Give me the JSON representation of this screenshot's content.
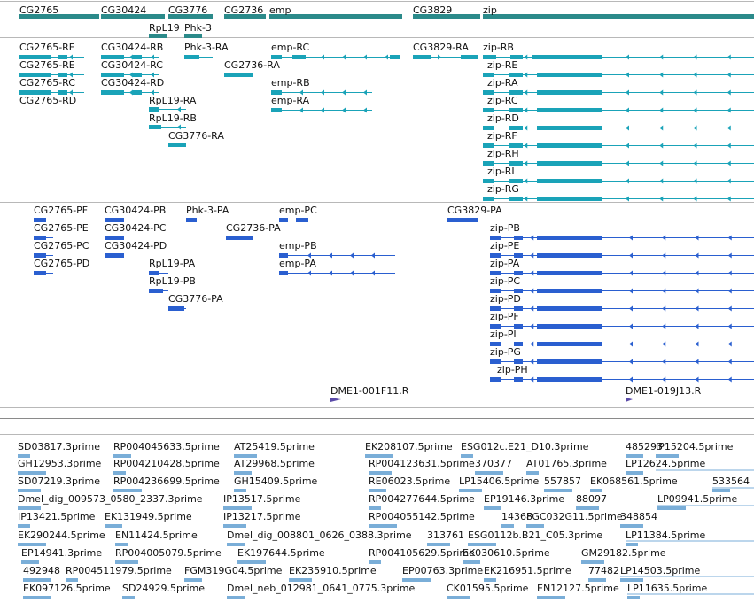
{
  "colors": {
    "gene": "#2b8a8a",
    "transcript": "#1aa3b8",
    "protein": "#2a5fd0",
    "clone": "#5a4aa8",
    "est": "#7aaed8",
    "divider": "#b8b8b8"
  },
  "tracks": {
    "genes": [
      "CG2765",
      "CG30424",
      "CG3776",
      "RpL19",
      "Phk-3",
      "CG2736",
      "emp",
      "CG3829",
      "zip"
    ],
    "transcripts": [
      "CG2765-RF",
      "CG2765-RE",
      "CG2765-RC",
      "CG2765-RD",
      "CG30424-RB",
      "CG30424-RC",
      "CG30424-RD",
      "RpL19-RA",
      "RpL19-RB",
      "CG3776-RA",
      "Phk-3-RA",
      "CG2736-RA",
      "emp-RC",
      "emp-RB",
      "emp-RA",
      "CG3829-RA",
      "zip-RB",
      "zip-RE",
      "zip-RA",
      "zip-RC",
      "zip-RD",
      "zip-RF",
      "zip-RH",
      "zip-RI",
      "zip-RG"
    ],
    "proteins": [
      "CG2765-PF",
      "CG2765-PE",
      "CG2765-PC",
      "CG2765-PD",
      "CG30424-PB",
      "CG30424-PC",
      "CG30424-PD",
      "RpL19-PA",
      "RpL19-PB",
      "CG3776-PA",
      "Phk-3-PA",
      "CG2736-PA",
      "emp-PC",
      "emp-PB",
      "emp-PA",
      "CG3829-PA",
      "zip-PB",
      "zip-PE",
      "zip-PA",
      "zip-PC",
      "zip-PD",
      "zip-PF",
      "zip-PI",
      "zip-PG",
      "zip-PH"
    ],
    "clones": [
      "DME1-001F11.R",
      "DME1-019J13.R"
    ],
    "ests": [
      "SD03817.3prime",
      "RP004045633.5prime",
      "AT25419.5prime",
      "EK208107.5prime",
      "ESG012c.E21_D10.3prime",
      "485293",
      "IP15204.5prime",
      "GH12953.3prime",
      "RP004210428.5prime",
      "AT29968.5prime",
      "RP004123631.5prime",
      "370377",
      "AT01765.3prime",
      "LP12624.5prime",
      "SD07219.3prime",
      "RP004236699.5prime",
      "GH15409.5prime",
      "RE06023.5prime",
      "LP15406.5prime",
      "557857",
      "EK068561.5prime",
      "533564",
      "Dmel_dig_009573_0580_2337.3prime",
      "IP13517.5prime",
      "RP004277644.5prime",
      "EP19146.3prime",
      "88097",
      "LP09941.5prime",
      "IP13421.5prime",
      "EK131949.5prime",
      "IP13217.5prime",
      "RP004055142.5prime",
      "14368",
      "FGC032G11.5prime",
      "348854",
      "EK290244.5prime",
      "EN11424.5prime",
      "Dmel_dig_008801_0626_0388.3prime",
      "313761",
      "ESG0112b.B21_C05.3prime",
      "LP11384.5prime",
      "EP14941.3prime",
      "RP004005079.5prime",
      "EK197644.5prime",
      "RP004105629.5prime",
      "EK030610.5prime",
      "GM29182.5prime",
      "492948",
      "RP004511979.5prime",
      "FGM319G04.5prime",
      "EK235910.5prime",
      "EP00763.3prime",
      "EK216951.5prime",
      "77482",
      "LP14503.5prime",
      "EK097126.5prime",
      "SD24929.5prime",
      "Dmel_neb_012981_0641_0775.3prime",
      "CK01595.5prime",
      "EN12127.5prime",
      "LP11635.5prime"
    ]
  }
}
